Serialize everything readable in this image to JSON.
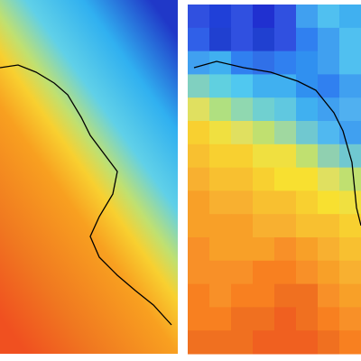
{
  "right_panel": {
    "cells": [
      [
        "#3050e0",
        "#2040d8",
        "#3050e0",
        "#2030d0",
        "#3050e0",
        "#40a0f0",
        "#50c0f0",
        "#40b0f0"
      ],
      [
        "#3060e8",
        "#2040d0",
        "#3050e0",
        "#2040d0",
        "#3050e0",
        "#3080f0",
        "#40a0f0",
        "#50c0f0"
      ],
      [
        "#40a0f0",
        "#40b0f0",
        "#3080f0",
        "#3070e8",
        "#3080f0",
        "#3090f0",
        "#40a0f0",
        "#50c0f0"
      ],
      [
        "#80d0c0",
        "#60d0e0",
        "#50c8f0",
        "#40b0f0",
        "#40b0f0",
        "#3090f0",
        "#3080f0",
        "#40a0f0"
      ],
      [
        "#e0e060",
        "#b0e080",
        "#90d8b0",
        "#70d0d0",
        "#60c8e0",
        "#40b0f0",
        "#40a0f0",
        "#50b0f0"
      ],
      [
        "#f8d030",
        "#f0e040",
        "#e0e060",
        "#c0e070",
        "#a0d8a0",
        "#70c8d0",
        "#50b8f0",
        "#40a0f0"
      ],
      [
        "#f8c030",
        "#f8d030",
        "#f8d030",
        "#f0e040",
        "#f0e040",
        "#c0e070",
        "#90d0b0",
        "#70c8d0"
      ],
      [
        "#f8b030",
        "#f8c030",
        "#f8c030",
        "#f8d030",
        "#f8e030",
        "#f8e030",
        "#e0e060",
        "#c0e070"
      ],
      [
        "#f8a028",
        "#f8b030",
        "#f8b030",
        "#f8c030",
        "#f8c030",
        "#f8d030",
        "#f8e030",
        "#f0e040"
      ],
      [
        "#f8a028",
        "#f8a028",
        "#f8a028",
        "#f8b030",
        "#f8b030",
        "#f8c030",
        "#f8c030",
        "#f8d030"
      ],
      [
        "#f89028",
        "#f8a028",
        "#f8a028",
        "#f8a028",
        "#f89028",
        "#f8a028",
        "#f8b030",
        "#f8c030"
      ],
      [
        "#f89028",
        "#f89028",
        "#f89028",
        "#f88020",
        "#f88020",
        "#f89028",
        "#f8a028",
        "#f8b030"
      ],
      [
        "#f88020",
        "#f89028",
        "#f88020",
        "#f88020",
        "#f07020",
        "#f07020",
        "#f89028",
        "#f8a028"
      ],
      [
        "#f88020",
        "#f88020",
        "#f07020",
        "#f07020",
        "#f06020",
        "#f07020",
        "#f88020",
        "#f89028"
      ],
      [
        "#f07020",
        "#f07020",
        "#f07020",
        "#f06020",
        "#f06020",
        "#f06020",
        "#f07020",
        "#f88020"
      ]
    ]
  }
}
